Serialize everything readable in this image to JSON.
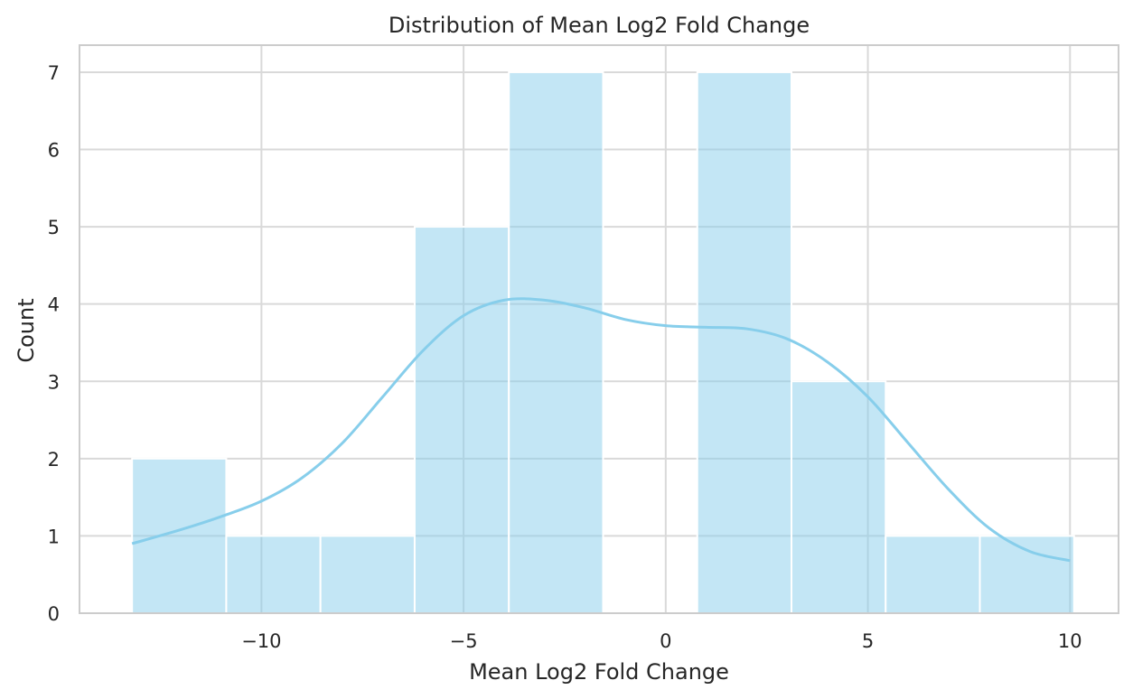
{
  "chart_data": {
    "type": "bar",
    "subtype": "histogram-with-kde",
    "title": "Distribution of Mean Log2 Fold Change",
    "xlabel": "Mean Log2 Fold Change",
    "ylabel": "Count",
    "xlim": [
      -14.5,
      11.2
    ],
    "ylim": [
      0,
      7.35
    ],
    "xticks": [
      -10,
      -5,
      0,
      5,
      10
    ],
    "xtick_labels": [
      "−10",
      "−5",
      "0",
      "5",
      "10"
    ],
    "yticks": [
      0,
      1,
      2,
      3,
      4,
      5,
      6,
      7
    ],
    "ytick_labels": [
      "0",
      "1",
      "2",
      "3",
      "4",
      "5",
      "6",
      "7"
    ],
    "grid": true,
    "bins": [
      {
        "start": -13.2,
        "end": -10.87,
        "count": 2
      },
      {
        "start": -10.87,
        "end": -8.54,
        "count": 1
      },
      {
        "start": -8.54,
        "end": -6.21,
        "count": 1
      },
      {
        "start": -6.21,
        "end": -3.88,
        "count": 5
      },
      {
        "start": -3.88,
        "end": -1.55,
        "count": 7
      },
      {
        "start": -1.55,
        "end": 0.78,
        "count": 0
      },
      {
        "start": 0.78,
        "end": 3.11,
        "count": 7
      },
      {
        "start": 3.11,
        "end": 5.44,
        "count": 3
      },
      {
        "start": 5.44,
        "end": 7.77,
        "count": 1
      },
      {
        "start": 7.77,
        "end": 10.1,
        "count": 1
      }
    ],
    "kde": {
      "x": [
        -13.2,
        -12,
        -11,
        -10,
        -9,
        -8,
        -7,
        -6,
        -5,
        -4,
        -3,
        -2,
        -1,
        0,
        1,
        2,
        3,
        4,
        5,
        6,
        7,
        8,
        9,
        10
      ],
      "y": [
        0.9,
        1.08,
        1.25,
        1.45,
        1.75,
        2.2,
        2.8,
        3.4,
        3.85,
        4.05,
        4.05,
        3.95,
        3.8,
        3.72,
        3.7,
        3.68,
        3.55,
        3.25,
        2.8,
        2.2,
        1.6,
        1.1,
        0.8,
        0.68
      ]
    },
    "colors": {
      "bar_fill": "#87ceeb",
      "bar_edge": "#ffffff",
      "kde_line": "#87ceeb",
      "grid": "#d9d9d9",
      "axis": "#cccccc"
    }
  }
}
